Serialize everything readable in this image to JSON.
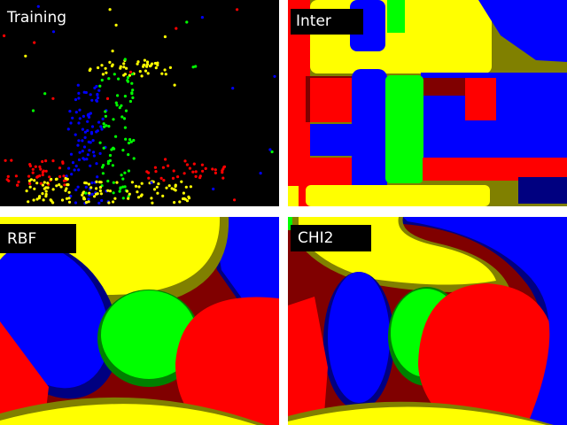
{
  "panels": {
    "training": {
      "label": "Training"
    },
    "inter": {
      "label": "Inter"
    },
    "rbf": {
      "label": "RBF"
    },
    "chi2": {
      "label": "CHI2"
    }
  },
  "class_colors": {
    "red": "#ff0000",
    "green": "#00ff00",
    "blue": "#0000ff",
    "yellow": "#ffff00"
  },
  "margin_colors": {
    "red": "#800000",
    "green": "#008000",
    "blue": "#000080",
    "yellow": "#808000"
  }
}
